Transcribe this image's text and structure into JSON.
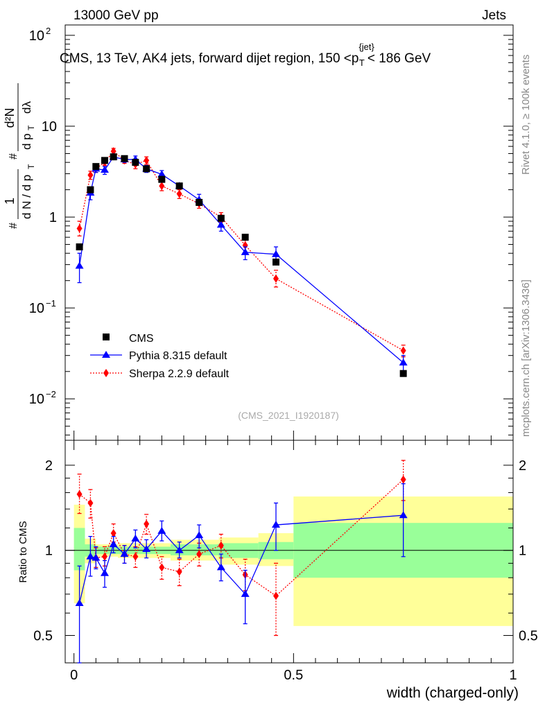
{
  "header": {
    "energy_label": "13000 GeV pp",
    "category_label": "Jets"
  },
  "side_labels": {
    "rivet": "Rivet 4.1.0, ≥ 100k events",
    "mcplots": "mcplots.cern.ch [arXiv:1306.3436]"
  },
  "chart_data": [
    {
      "type": "scatter",
      "panel": "main",
      "title": "CMS, 13 TeV, AK4 jets, forward dijet region, 150 <p_T^{jet}< 186 GeV",
      "title_parts": {
        "lead": "CMS, 13 TeV, AK4 jets, forward dijet region, 150 <p",
        "sub": "T",
        "sup": "{jet}",
        "tail": "< 186 GeV"
      },
      "ylabel": "1/N dN/dp_T d²N/dp_T dλ",
      "ylabel_parts": {
        "frac1_num": "1",
        "frac1_den": "d N / d p",
        "frac2_num": "d²N",
        "frac2_den": "d p",
        "frac2_den2": "dλ",
        "sub": "T",
        "hash": "#"
      },
      "yscale": "log",
      "ylim": [
        0.0035,
        130
      ],
      "xlim": [
        -0.02,
        1.0
      ],
      "yticks": [
        {
          "v": 0.01,
          "base": "10",
          "exp": "−2"
        },
        {
          "v": 0.1,
          "base": "10",
          "exp": "−1"
        },
        {
          "v": 1,
          "base": "1",
          "exp": ""
        },
        {
          "v": 10,
          "base": "10",
          "exp": ""
        },
        {
          "v": 100,
          "base": "10",
          "exp": "2"
        }
      ],
      "watermark": "(CMS_2021_I1920187)",
      "legend": [
        "CMS",
        "Pythia 8.315 default",
        "Sherpa 2.2.9 default"
      ],
      "legend_position": "lower-left",
      "series": [
        {
          "name": "CMS",
          "color": "#000000",
          "marker": "square",
          "x": [
            0.0125,
            0.0375,
            0.05,
            0.07,
            0.09,
            0.115,
            0.14,
            0.165,
            0.2,
            0.24,
            0.285,
            0.335,
            0.39,
            0.46,
            0.75
          ],
          "y": [
            0.47,
            2.0,
            3.6,
            4.2,
            4.6,
            4.4,
            4.0,
            3.4,
            2.6,
            2.2,
            1.45,
            0.97,
            0.6,
            0.32,
            0.019
          ]
        },
        {
          "name": "Pythia 8.315 default",
          "color": "#0000ff",
          "marker": "triangle",
          "line": "solid",
          "x": [
            0.0125,
            0.0375,
            0.05,
            0.07,
            0.09,
            0.115,
            0.14,
            0.165,
            0.2,
            0.24,
            0.285,
            0.335,
            0.39,
            0.46,
            0.75
          ],
          "y": [
            0.29,
            1.85,
            3.4,
            3.3,
            4.6,
            4.3,
            4.3,
            3.4,
            2.95,
            2.2,
            1.55,
            0.82,
            0.41,
            0.39,
            0.025
          ],
          "err_lo": [
            0.19,
            1.55,
            3.1,
            2.95,
            4.3,
            4.0,
            3.9,
            3.1,
            2.7,
            2.05,
            1.35,
            0.7,
            0.34,
            0.32,
            0.02
          ],
          "err_hi": [
            0.4,
            2.1,
            3.7,
            3.6,
            4.9,
            4.6,
            4.7,
            3.7,
            3.25,
            2.35,
            1.78,
            0.95,
            0.47,
            0.47,
            0.03
          ]
        },
        {
          "name": "Sherpa 2.2.9 default",
          "color": "#ff0000",
          "marker": "diamond",
          "line": "dotted",
          "x": [
            0.0125,
            0.0375,
            0.05,
            0.07,
            0.09,
            0.115,
            0.14,
            0.165,
            0.2,
            0.24,
            0.285,
            0.335,
            0.39,
            0.46,
            0.75
          ],
          "y": [
            0.75,
            2.9,
            3.4,
            4.0,
            5.3,
            4.2,
            3.8,
            4.2,
            2.2,
            1.8,
            1.4,
            1.0,
            0.49,
            0.21,
            0.034
          ],
          "err_lo": [
            0.62,
            2.6,
            3.1,
            3.7,
            4.9,
            3.9,
            3.4,
            3.8,
            1.95,
            1.6,
            1.25,
            0.88,
            0.41,
            0.17,
            0.029
          ],
          "err_hi": [
            0.9,
            3.2,
            3.7,
            4.3,
            5.7,
            4.5,
            4.2,
            4.6,
            2.45,
            2.0,
            1.55,
            1.12,
            0.57,
            0.26,
            0.039
          ]
        }
      ]
    },
    {
      "type": "scatter",
      "panel": "ratio",
      "ylabel": "Ratio to CMS",
      "xlabel": "width (charged-only)",
      "yscale": "log",
      "ylim": [
        0.4,
        2.45
      ],
      "xlim": [
        -0.02,
        1.0
      ],
      "xticks": [
        0,
        0.5,
        1
      ],
      "xtick_labels": [
        "0",
        "0.5",
        "1"
      ],
      "yticks": [
        0.5,
        1,
        2
      ],
      "ytick_labels": [
        "0.5",
        "1",
        "2"
      ],
      "uncertainty_bands": [
        {
          "x0": 0.0,
          "x1": 0.025,
          "green": [
            0.85,
            1.2
          ],
          "yellow": [
            0.65,
            1.45
          ]
        },
        {
          "x0": 0.025,
          "x1": 0.05,
          "green": [
            0.95,
            1.05
          ],
          "yellow": [
            0.9,
            1.1
          ]
        },
        {
          "x0": 0.05,
          "x1": 0.1,
          "green": [
            0.97,
            1.03
          ],
          "yellow": [
            0.95,
            1.05
          ]
        },
        {
          "x0": 0.1,
          "x1": 0.22,
          "green": [
            0.97,
            1.03
          ],
          "yellow": [
            0.94,
            1.06
          ]
        },
        {
          "x0": 0.22,
          "x1": 0.33,
          "green": [
            0.96,
            1.05
          ],
          "yellow": [
            0.92,
            1.09
          ]
        },
        {
          "x0": 0.33,
          "x1": 0.42,
          "green": [
            0.94,
            1.06
          ],
          "yellow": [
            0.89,
            1.11
          ]
        },
        {
          "x0": 0.42,
          "x1": 0.5,
          "green": [
            0.93,
            1.07
          ],
          "yellow": [
            0.88,
            1.15
          ]
        },
        {
          "x0": 0.5,
          "x1": 1.0,
          "green": [
            0.8,
            1.25
          ],
          "yellow": [
            0.54,
            1.55
          ]
        }
      ],
      "series": [
        {
          "name": "Pythia 8.315 default",
          "color": "#0000ff",
          "marker": "triangle",
          "line": "solid",
          "x": [
            0.0125,
            0.0375,
            0.05,
            0.07,
            0.09,
            0.115,
            0.14,
            0.165,
            0.2,
            0.24,
            0.285,
            0.335,
            0.39,
            0.46,
            0.75
          ],
          "y": [
            0.65,
            0.95,
            0.94,
            0.83,
            1.05,
            0.97,
            1.1,
            1.01,
            1.17,
            1.0,
            1.13,
            0.87,
            0.7,
            1.23,
            1.33
          ],
          "err_lo": [
            0.38,
            0.81,
            0.86,
            0.74,
            0.98,
            0.9,
            1.02,
            0.94,
            1.08,
            0.94,
            1.02,
            0.78,
            0.55,
            1.0,
            0.95
          ],
          "err_hi": [
            0.88,
            1.12,
            1.03,
            0.92,
            1.12,
            1.04,
            1.18,
            1.09,
            1.27,
            1.07,
            1.23,
            0.97,
            0.85,
            1.47,
            1.72
          ]
        },
        {
          "name": "Sherpa 2.2.9 default",
          "color": "#ff0000",
          "marker": "diamond",
          "line": "dotted",
          "x": [
            0.0125,
            0.0375,
            0.05,
            0.07,
            0.09,
            0.115,
            0.14,
            0.165,
            0.2,
            0.24,
            0.285,
            0.335,
            0.39,
            0.46,
            0.75
          ],
          "y": [
            1.58,
            1.47,
            0.94,
            0.95,
            1.15,
            0.97,
            0.95,
            1.24,
            0.87,
            0.84,
            0.97,
            1.04,
            0.82,
            0.69,
            1.78
          ],
          "err_lo": [
            1.35,
            1.3,
            0.87,
            0.88,
            1.07,
            0.9,
            0.87,
            1.14,
            0.79,
            0.75,
            0.88,
            0.94,
            0.72,
            0.5,
            1.5
          ],
          "err_hi": [
            1.86,
            1.64,
            1.02,
            1.03,
            1.24,
            1.04,
            1.03,
            1.34,
            0.95,
            0.93,
            1.06,
            1.14,
            0.93,
            0.9,
            2.08
          ]
        }
      ]
    }
  ]
}
